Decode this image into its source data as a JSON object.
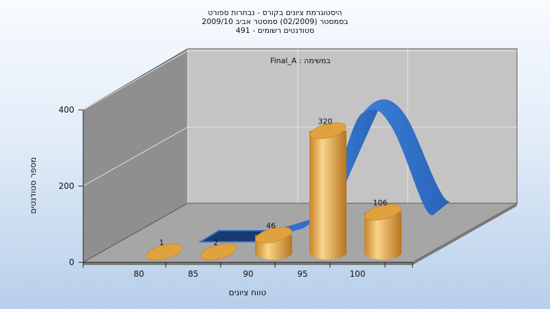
{
  "chart_data": {
    "type": "bar",
    "title_lines": [
      "היסטוגרמת ציונים בקורס - נבחרות ספורט",
      "בסמסטר  (02/2009)  סמסטר אביב 2009/10",
      "סטודנטים רשומים - 491"
    ],
    "subtitle": "במשימה : Final_A",
    "categories": [
      "80",
      "85",
      "90",
      "95",
      "100"
    ],
    "values": [
      1,
      2,
      46,
      320,
      106
    ],
    "series_line": [
      0,
      0,
      46,
      320,
      106
    ],
    "xlabel": "טווח ציונים",
    "ylabel": "מספר סטודנטים",
    "ylim": [
      0,
      400
    ],
    "yticks": [
      "0",
      "200",
      "400"
    ],
    "grid": true,
    "three_d": true,
    "colors": {
      "bar": "#e0a23c",
      "bar_light": "#f8d48a",
      "bar_dark": "#b87420",
      "ribbon": "#2f6fc8",
      "ribbon_dark": "#173a73",
      "back_wall": "#c4c4c4",
      "side_wall": "#8f8f8f",
      "floor": "#a6a6a6",
      "grid": "#e4e4e4"
    }
  }
}
